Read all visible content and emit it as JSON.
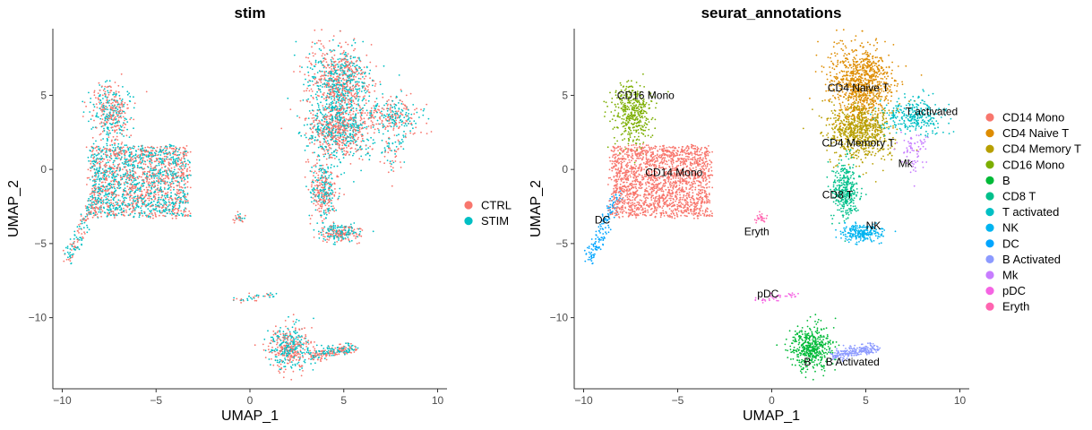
{
  "chart_data": [
    {
      "type": "scatter",
      "title": "stim",
      "xlabel": "UMAP_1",
      "ylabel": "UMAP_2",
      "xlim": [
        -10.5,
        10.5
      ],
      "ylim": [
        -14.8,
        9.5
      ],
      "xticks": [
        -10,
        -5,
        0,
        5,
        10
      ],
      "yticks": [
        5,
        0,
        -5,
        -10
      ],
      "xtick_labels": [
        "−10",
        "−5",
        "0",
        "5",
        "10"
      ],
      "ytick_labels": [
        "5",
        "0",
        "−5",
        "−10"
      ],
      "grid": false,
      "legend_position": "right",
      "series": [
        {
          "name": "CTRL",
          "color": "#F8766D"
        },
        {
          "name": "STIM",
          "color": "#00BFC4"
        }
      ]
    },
    {
      "type": "scatter",
      "title": "seurat_annotations",
      "xlabel": "UMAP_1",
      "ylabel": "UMAP_2",
      "xlim": [
        -10.5,
        10.5
      ],
      "ylim": [
        -14.8,
        9.5
      ],
      "xticks": [
        -10,
        -5,
        0,
        5,
        10
      ],
      "yticks": [
        5,
        0,
        -5,
        -10
      ],
      "xtick_labels": [
        "−10",
        "−5",
        "0",
        "5",
        "10"
      ],
      "ytick_labels": [
        "5",
        "0",
        "−5",
        "−10"
      ],
      "grid": false,
      "legend_position": "right",
      "series": [
        {
          "name": "CD14 Mono",
          "color": "#F8766D"
        },
        {
          "name": "CD4 Naive T",
          "color": "#DE8C00"
        },
        {
          "name": "CD4 Memory T",
          "color": "#B79F00"
        },
        {
          "name": "CD16 Mono",
          "color": "#7CAE00"
        },
        {
          "name": "B",
          "color": "#00BA38"
        },
        {
          "name": "CD8 T",
          "color": "#00C08B"
        },
        {
          "name": "T activated",
          "color": "#00BFC4"
        },
        {
          "name": "NK",
          "color": "#00B4F0"
        },
        {
          "name": "DC",
          "color": "#00A5FF"
        },
        {
          "name": "B Activated",
          "color": "#8C9AFF"
        },
        {
          "name": "Mk",
          "color": "#C77CFF"
        },
        {
          "name": "pDC",
          "color": "#F564E3"
        },
        {
          "name": "Eryth",
          "color": "#FF64B0"
        }
      ],
      "cluster_labels": [
        {
          "text": "CD16 Mono",
          "x": -6.7,
          "y": 5.0
        },
        {
          "text": "CD14 Mono",
          "x": -5.2,
          "y": -0.2
        },
        {
          "text": "CD4 Naive T",
          "x": 4.6,
          "y": 5.5
        },
        {
          "text": "T activated",
          "x": 8.5,
          "y": 3.9
        },
        {
          "text": "CD4 Memory T",
          "x": 4.6,
          "y": 1.8
        },
        {
          "text": "Mk",
          "x": 7.1,
          "y": 0.4
        },
        {
          "text": "CD8 T",
          "x": 3.5,
          "y": -1.7
        },
        {
          "text": "DC",
          "x": -9.0,
          "y": -3.4
        },
        {
          "text": "NK",
          "x": 5.4,
          "y": -3.8
        },
        {
          "text": "Eryth",
          "x": -0.8,
          "y": -4.2
        },
        {
          "text": "pDC",
          "x": -0.2,
          "y": -8.4
        },
        {
          "text": "B",
          "x": 1.9,
          "y": -13.0
        },
        {
          "text": "B Activated",
          "x": 4.3,
          "y": -13.0
        }
      ]
    }
  ]
}
